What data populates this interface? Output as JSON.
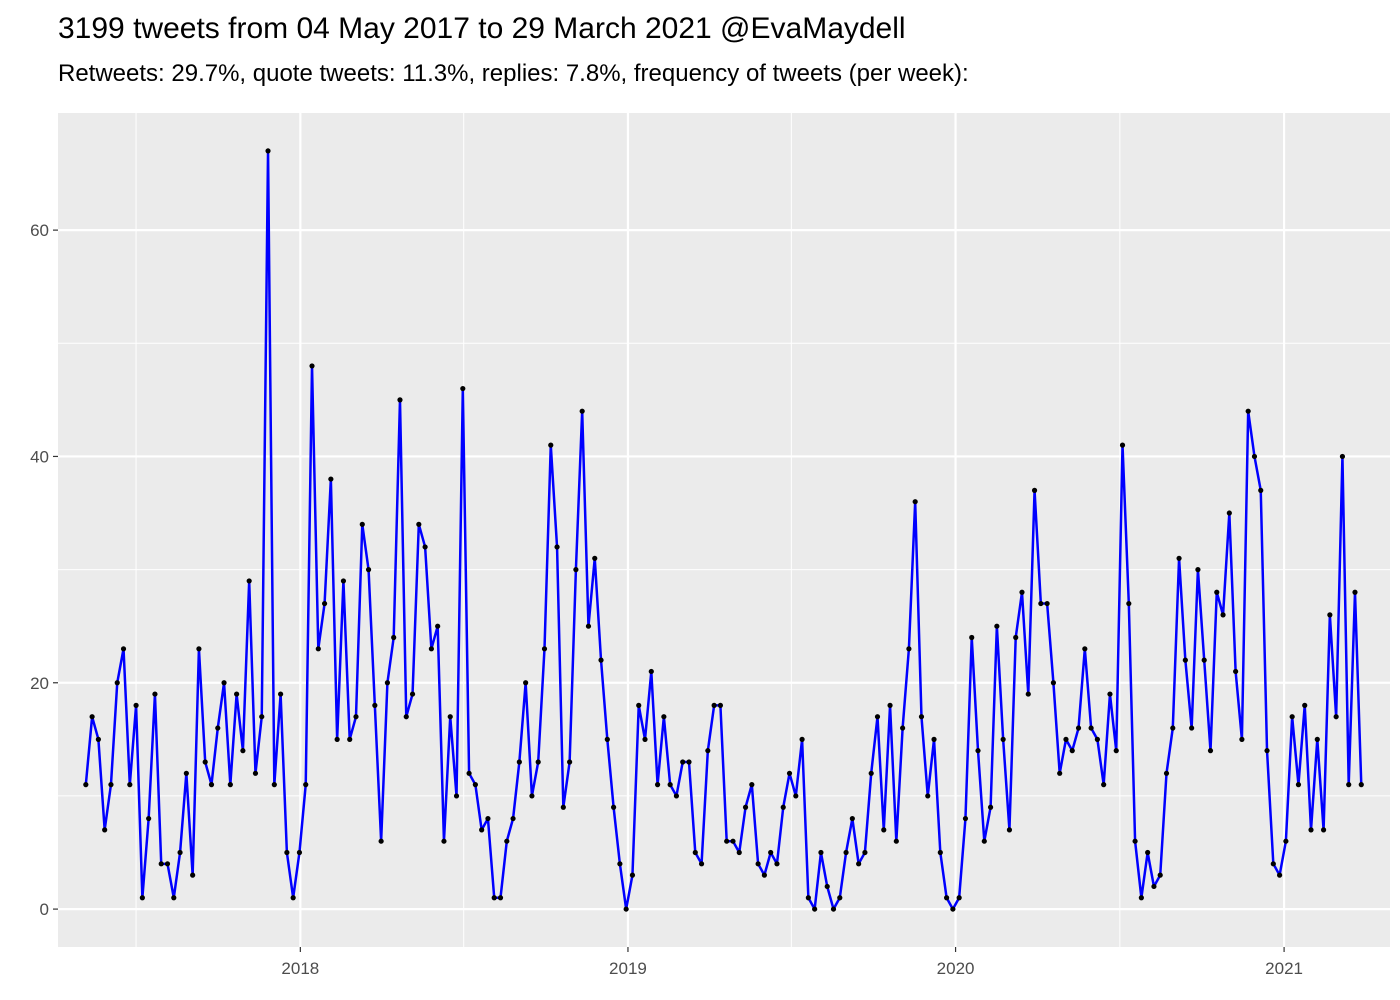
{
  "chart_data": {
    "type": "line",
    "title": "3199 tweets from 04 May 2017 to 29 March 2021 @EvaMaydell",
    "subtitle": "Retweets: 29.7%, quote tweets: 11.3%, replies: 7.8%, frequency of tweets (per week):",
    "xlabel": "",
    "ylabel": "",
    "x_start": "2017-05-07",
    "x_step_days": 7,
    "xlim": [
      "2017-04-06",
      "2021-04-29"
    ],
    "ylim": [
      -3.35,
      70.35
    ],
    "x_ticks": [
      {
        "date": "2018-01-01",
        "label": "2018"
      },
      {
        "date": "2019-01-01",
        "label": "2019"
      },
      {
        "date": "2020-01-01",
        "label": "2020"
      },
      {
        "date": "2021-01-01",
        "label": "2021"
      }
    ],
    "x_minor_ticks": [
      "2017-07-02",
      "2018-07-02",
      "2019-07-02",
      "2020-07-02"
    ],
    "y_ticks": [
      0,
      20,
      40,
      60
    ],
    "y_minor_ticks": [
      10,
      30,
      50
    ],
    "grid": true,
    "line_color": "#0000ff",
    "point_color": "#000000",
    "panel_color": "#ebebeb",
    "grid_color": "#ffffff",
    "series": [
      {
        "values": [
          11,
          17,
          15,
          7,
          11,
          20,
          23,
          11,
          18,
          1,
          8,
          19,
          4,
          4,
          1,
          5,
          12,
          3,
          23,
          13,
          11,
          16,
          20,
          11,
          19,
          14,
          29,
          12,
          17,
          67,
          11,
          19,
          5,
          1,
          5,
          11,
          48,
          23,
          27,
          38,
          15,
          29,
          15,
          17,
          34,
          30,
          18,
          6,
          20,
          24,
          45,
          17,
          19,
          34,
          32,
          23,
          25,
          6,
          17,
          10,
          46,
          12,
          11,
          7,
          8,
          1,
          1,
          6,
          8,
          13,
          20,
          10,
          13,
          23,
          41,
          32,
          9,
          13,
          30,
          44,
          25,
          31,
          22,
          15,
          9,
          4,
          0,
          3,
          18,
          15,
          21,
          11,
          17,
          11,
          10,
          13,
          13,
          5,
          4,
          14,
          18,
          18,
          6,
          6,
          5,
          9,
          11,
          4,
          3,
          5,
          4,
          9,
          12,
          10,
          15,
          1,
          0,
          5,
          2,
          0,
          1,
          5,
          8,
          4,
          5,
          12,
          17,
          7,
          18,
          6,
          16,
          23,
          36,
          17,
          10,
          15,
          5,
          1,
          0,
          1,
          8,
          24,
          14,
          6,
          9,
          25,
          15,
          7,
          24,
          28,
          19,
          37,
          27,
          27,
          20,
          12,
          15,
          14,
          16,
          23,
          16,
          15,
          11,
          19,
          14,
          41,
          27,
          6,
          1,
          5,
          2,
          3,
          12,
          16,
          31,
          22,
          16,
          30,
          22,
          14,
          28,
          26,
          35,
          21,
          15,
          44,
          40,
          37,
          14,
          4,
          3,
          6,
          17,
          11,
          18,
          7,
          15,
          7,
          26,
          17,
          40,
          11,
          28,
          11
        ]
      }
    ]
  }
}
